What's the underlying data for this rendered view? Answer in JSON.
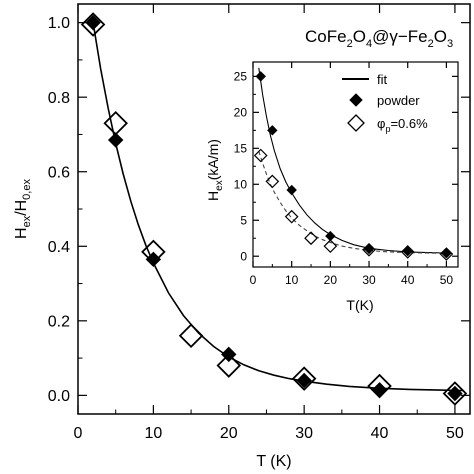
{
  "chart_data": [
    {
      "type": "scatter",
      "title": "CoFe2O4@γ-Fe2O3",
      "xlabel": "T (K)",
      "ylabel": "Hex/H0,ex",
      "xlim": [
        0,
        52
      ],
      "ylim": [
        -0.05,
        1.05
      ],
      "xticks": [
        0,
        10,
        20,
        30,
        40,
        50
      ],
      "yticks": [
        0.0,
        0.2,
        0.4,
        0.6,
        0.8,
        1.0
      ],
      "xtick_labels": [
        "0",
        "10",
        "20",
        "30",
        "40",
        "50"
      ],
      "ytick_labels": [
        "0.0",
        "0.2",
        "0.4",
        "0.6",
        "0.8",
        "1.0"
      ],
      "series": [
        {
          "marker": "filled-diamond",
          "x": [
            2,
            5,
            10,
            20,
            30,
            40,
            50
          ],
          "y": [
            1.0,
            0.685,
            0.365,
            0.11,
            0.04,
            0.015,
            0.005
          ]
        },
        {
          "marker": "open-diamond",
          "x": [
            2,
            5,
            10,
            15,
            20,
            30,
            40,
            50
          ],
          "y": [
            0.995,
            0.73,
            0.385,
            0.16,
            0.08,
            0.045,
            0.025,
            0.005
          ]
        },
        {
          "style": "solid-line",
          "x": [
            2,
            3,
            4,
            5,
            6,
            7,
            8,
            9,
            10,
            12,
            14,
            16,
            18,
            20,
            22,
            24,
            26,
            28,
            30,
            33,
            36,
            40,
            44,
            48,
            51
          ],
          "y": [
            1.0,
            0.877,
            0.77,
            0.676,
            0.594,
            0.521,
            0.458,
            0.403,
            0.355,
            0.275,
            0.214,
            0.167,
            0.131,
            0.103,
            0.082,
            0.066,
            0.054,
            0.045,
            0.038,
            0.03,
            0.024,
            0.019,
            0.016,
            0.014,
            0.013
          ]
        }
      ]
    },
    {
      "type": "scatter",
      "xlabel": "T(K)",
      "ylabel": "Hex(kA/m)",
      "xlim": [
        0,
        53
      ],
      "ylim": [
        -1.5,
        27
      ],
      "xticks": [
        0,
        10,
        20,
        30,
        40,
        50
      ],
      "yticks": [
        0,
        5,
        10,
        15,
        20,
        25
      ],
      "xtick_labels": [
        "0",
        "10",
        "20",
        "30",
        "40",
        "50"
      ],
      "ytick_labels": [
        "0",
        "5",
        "10",
        "15",
        "20",
        "25"
      ],
      "legend_position": "top-right",
      "series": [
        {
          "name": "fit",
          "style": "line",
          "x": [
            1.5,
            2.5,
            3.5,
            4.5,
            5.5,
            7,
            8.5,
            10,
            12,
            14,
            16,
            18,
            20,
            23,
            26,
            30,
            35,
            40,
            45,
            50
          ],
          "y": [
            26.2,
            22.4,
            19.4,
            16.8,
            14.7,
            12.2,
            10.3,
            8.8,
            7.1,
            5.7,
            4.6,
            3.7,
            3.0,
            2.2,
            1.6,
            1.1,
            0.8,
            0.6,
            0.5,
            0.45
          ]
        },
        {
          "style": "dashed-line",
          "x": [
            1.5,
            2.5,
            3.5,
            4.5,
            5.5,
            7,
            8.5,
            10,
            12,
            14,
            16,
            18,
            20,
            23,
            26,
            30,
            35,
            40,
            45,
            50
          ],
          "y": [
            14.6,
            12.9,
            11.4,
            10.0,
            8.9,
            7.5,
            6.3,
            5.3,
            4.3,
            3.5,
            2.8,
            2.3,
            1.9,
            1.4,
            1.1,
            0.8,
            0.6,
            0.5,
            0.45,
            0.4
          ]
        },
        {
          "name": "powder",
          "marker": "filled-diamond",
          "x": [
            2,
            5,
            10,
            20,
            30,
            40,
            50
          ],
          "y": [
            25.0,
            17.5,
            9.2,
            2.8,
            1.0,
            0.7,
            0.4
          ]
        },
        {
          "name": "φp=0.6%",
          "marker": "open-diamond",
          "x": [
            2,
            5,
            10,
            15,
            20,
            30,
            40,
            50
          ],
          "y": [
            14.0,
            10.4,
            5.5,
            2.5,
            1.4,
            0.9,
            0.6,
            0.3
          ]
        }
      ]
    }
  ]
}
